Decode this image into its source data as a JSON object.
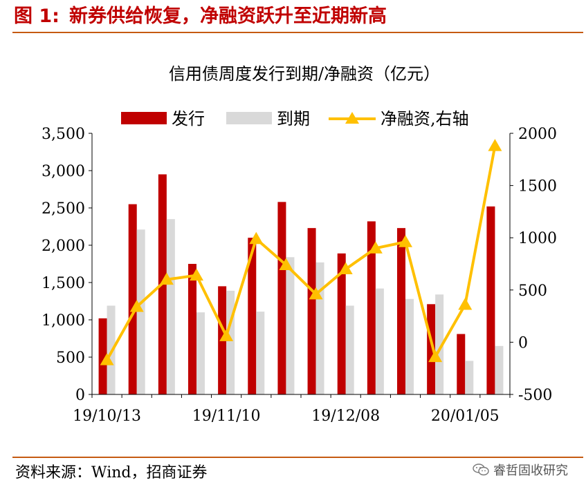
{
  "figure": {
    "label": "图 1:",
    "title": "新券供给恢复，净融资跃升至近期新高",
    "source": "资料来源：Wind，招商证券",
    "watermark": "睿哲固收研究",
    "watermark_icon": "wechat-icon"
  },
  "chart_data": {
    "type": "bar",
    "title": "信用债周度发行到期/净融资（亿元）",
    "x_tick_labels": [
      "19/10/13",
      "19/11/10",
      "19/12/08",
      "20/01/05"
    ],
    "categories": [
      "19/10/13",
      "19/10/20",
      "19/10/27",
      "19/11/03",
      "19/11/10",
      "19/11/17",
      "19/11/24",
      "19/12/01",
      "19/12/08",
      "19/12/15",
      "19/12/22",
      "19/12/29",
      "20/01/05",
      "20/01/12"
    ],
    "series": [
      {
        "name": "发行",
        "kind": "bar",
        "axis": "left",
        "color": "#c00000",
        "values": [
          1020,
          2550,
          2950,
          1750,
          1450,
          2100,
          2580,
          2230,
          1890,
          2320,
          2230,
          1210,
          810,
          2520
        ]
      },
      {
        "name": "到期",
        "kind": "bar",
        "axis": "left",
        "color": "#d9d9d9",
        "values": [
          1190,
          2210,
          2350,
          1100,
          1390,
          1110,
          1840,
          1770,
          1190,
          1420,
          1280,
          1340,
          450,
          650
        ]
      },
      {
        "name": "净融资,右轴",
        "kind": "line",
        "axis": "right",
        "color": "#ffc000",
        "values": [
          -170,
          340,
          600,
          640,
          60,
          990,
          740,
          460,
          700,
          900,
          960,
          -140,
          360,
          1880
        ]
      }
    ],
    "y_left": {
      "min": 0,
      "max": 3500,
      "ticks": [
        0,
        500,
        1000,
        1500,
        2000,
        2500,
        3000,
        3500
      ],
      "tick_labels": [
        "0",
        "500",
        "1,000",
        "1,500",
        "2,000",
        "2,500",
        "3,000",
        "3,500"
      ]
    },
    "y_right": {
      "min": -500,
      "max": 2000,
      "ticks": [
        -500,
        0,
        500,
        1000,
        1500,
        2000
      ],
      "tick_labels": [
        "-500",
        "0",
        "500",
        "1000",
        "1500",
        "2000"
      ]
    },
    "legend_position": "top",
    "grid": false
  }
}
